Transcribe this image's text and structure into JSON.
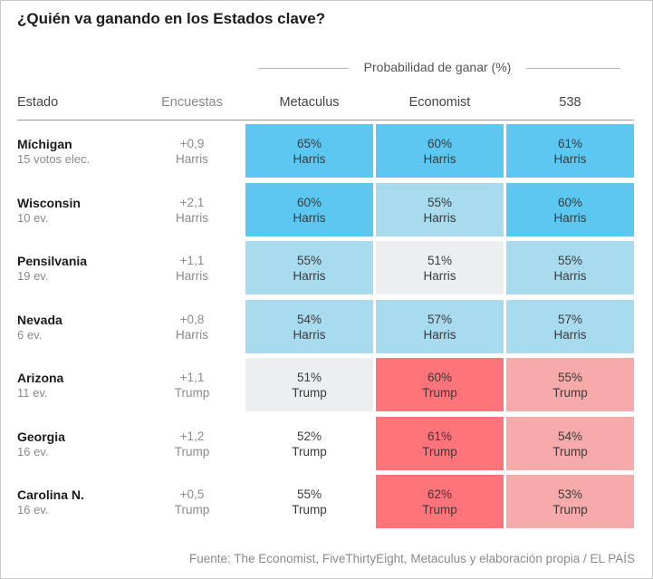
{
  "title": "¿Quién va ganando en los Estados clave?",
  "probability_header": "Probabilidad de ganar (%)",
  "columns": {
    "estado": "Estado",
    "encuestas": "Encuestas",
    "models": [
      "Metaculus",
      "Economist",
      "538"
    ]
  },
  "colors": {
    "harris_strong": "#5cc8f2",
    "harris_light": "#a9dbef",
    "tossup": "#eceff1",
    "trump_strong": "#ff737b",
    "trump_light": "#f7aaaa"
  },
  "source": "Fuente: The Economist, FiveThirtyEight, Metaculus y elaboración propia / EL PAÍS",
  "chart_data": {
    "type": "table",
    "title": "¿Quién va ganando en los Estados clave?",
    "columns": [
      "Estado",
      "Encuestas",
      "Metaculus",
      "Economist",
      "538"
    ],
    "rows": [
      {
        "state": "Míchigan",
        "votes": "15 votos elec.",
        "poll_margin": "+0,9",
        "poll_leader": "Harris",
        "cells": [
          {
            "pct": "65%",
            "who": "Harris",
            "shade": "harris_strong"
          },
          {
            "pct": "60%",
            "who": "Harris",
            "shade": "harris_strong"
          },
          {
            "pct": "61%",
            "who": "Harris",
            "shade": "harris_strong"
          }
        ]
      },
      {
        "state": "Wisconsin",
        "votes": "10 ev.",
        "poll_margin": "+2,1",
        "poll_leader": "Harris",
        "cells": [
          {
            "pct": "60%",
            "who": "Harris",
            "shade": "harris_strong"
          },
          {
            "pct": "55%",
            "who": "Harris",
            "shade": "harris_light"
          },
          {
            "pct": "60%",
            "who": "Harris",
            "shade": "harris_strong"
          }
        ]
      },
      {
        "state": "Pensilvania",
        "votes": "19 ev.",
        "poll_margin": "+1,1",
        "poll_leader": "Harris",
        "cells": [
          {
            "pct": "55%",
            "who": "Harris",
            "shade": "harris_light"
          },
          {
            "pct": "51%",
            "who": "Harris",
            "shade": "tossup"
          },
          {
            "pct": "55%",
            "who": "Harris",
            "shade": "harris_light"
          }
        ]
      },
      {
        "state": "Nevada",
        "votes": "6 ev.",
        "poll_margin": "+0,8",
        "poll_leader": "Harris",
        "cells": [
          {
            "pct": "54%",
            "who": "Harris",
            "shade": "harris_light"
          },
          {
            "pct": "57%",
            "who": "Harris",
            "shade": "harris_light"
          },
          {
            "pct": "57%",
            "who": "Harris",
            "shade": "harris_light"
          }
        ]
      },
      {
        "state": "Arizona",
        "votes": "11 ev.",
        "poll_margin": "+1,1",
        "poll_leader": "Trump",
        "cells": [
          {
            "pct": "51%",
            "who": "Trump",
            "shade": "tossup"
          },
          {
            "pct": "60%",
            "who": "Trump",
            "shade": "trump_strong"
          },
          {
            "pct": "55%",
            "who": "Trump",
            "shade": "trump_light"
          }
        ]
      },
      {
        "state": "Georgia",
        "votes": "16 ev.",
        "poll_margin": "+1,2",
        "poll_leader": "Trump",
        "cells": [
          {
            "pct": "52%",
            "who": "Trump",
            "shade": "none"
          },
          {
            "pct": "61%",
            "who": "Trump",
            "shade": "trump_strong"
          },
          {
            "pct": "54%",
            "who": "Trump",
            "shade": "trump_light"
          }
        ]
      },
      {
        "state": "Carolina N.",
        "votes": "16 ev.",
        "poll_margin": "+0,5",
        "poll_leader": "Trump",
        "cells": [
          {
            "pct": "55%",
            "who": "Trump",
            "shade": "none"
          },
          {
            "pct": "62%",
            "who": "Trump",
            "shade": "trump_strong"
          },
          {
            "pct": "53%",
            "who": "Trump",
            "shade": "trump_light"
          }
        ]
      }
    ]
  }
}
